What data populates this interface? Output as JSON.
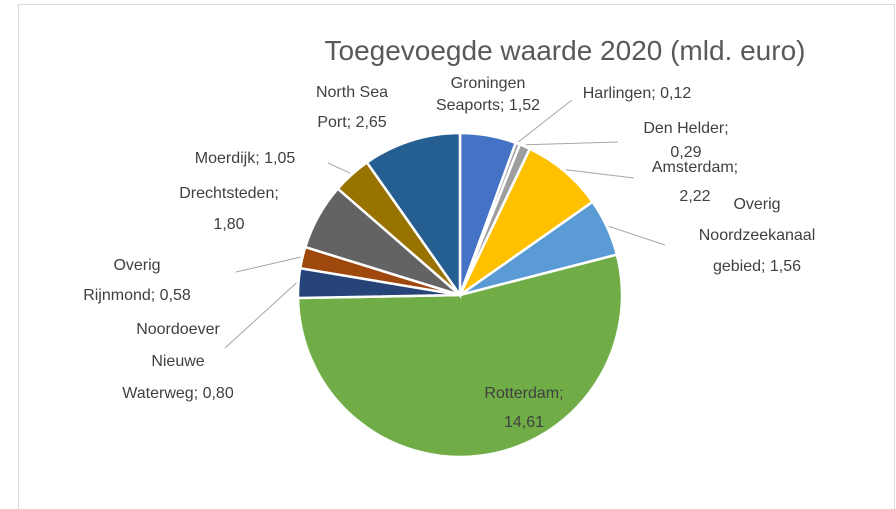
{
  "chart_data": {
    "type": "pie",
    "title": "Toegevoegde waarde 2020 (mld. euro)",
    "values": [
      1.52,
      0.12,
      0.29,
      2.22,
      1.56,
      14.61,
      0.8,
      0.58,
      1.8,
      1.05,
      2.65
    ],
    "value_labels": [
      "Groningen Seaports; 1,52",
      "Harlingen; 0,12",
      "Den Helder; 0,29",
      "Amsterdam; 2,22",
      "Overig Noordzeekanaal gebied; 1,56",
      "Rotterdam; 14,61",
      "Noordoever Nieuwe Waterweg; 0,80",
      "Overig Rijnmond; 0,58",
      "Drechtsteden; 1,80",
      "Moerdijk; 1,05",
      "North Sea Port; 2,65"
    ],
    "colors": [
      "#4472c4",
      "#a5a5a5",
      "#9e9e9e",
      "#ffc000",
      "#5b9bd5",
      "#70ad47",
      "#264478",
      "#9e480e",
      "#636363",
      "#997300",
      "#255e91"
    ]
  }
}
